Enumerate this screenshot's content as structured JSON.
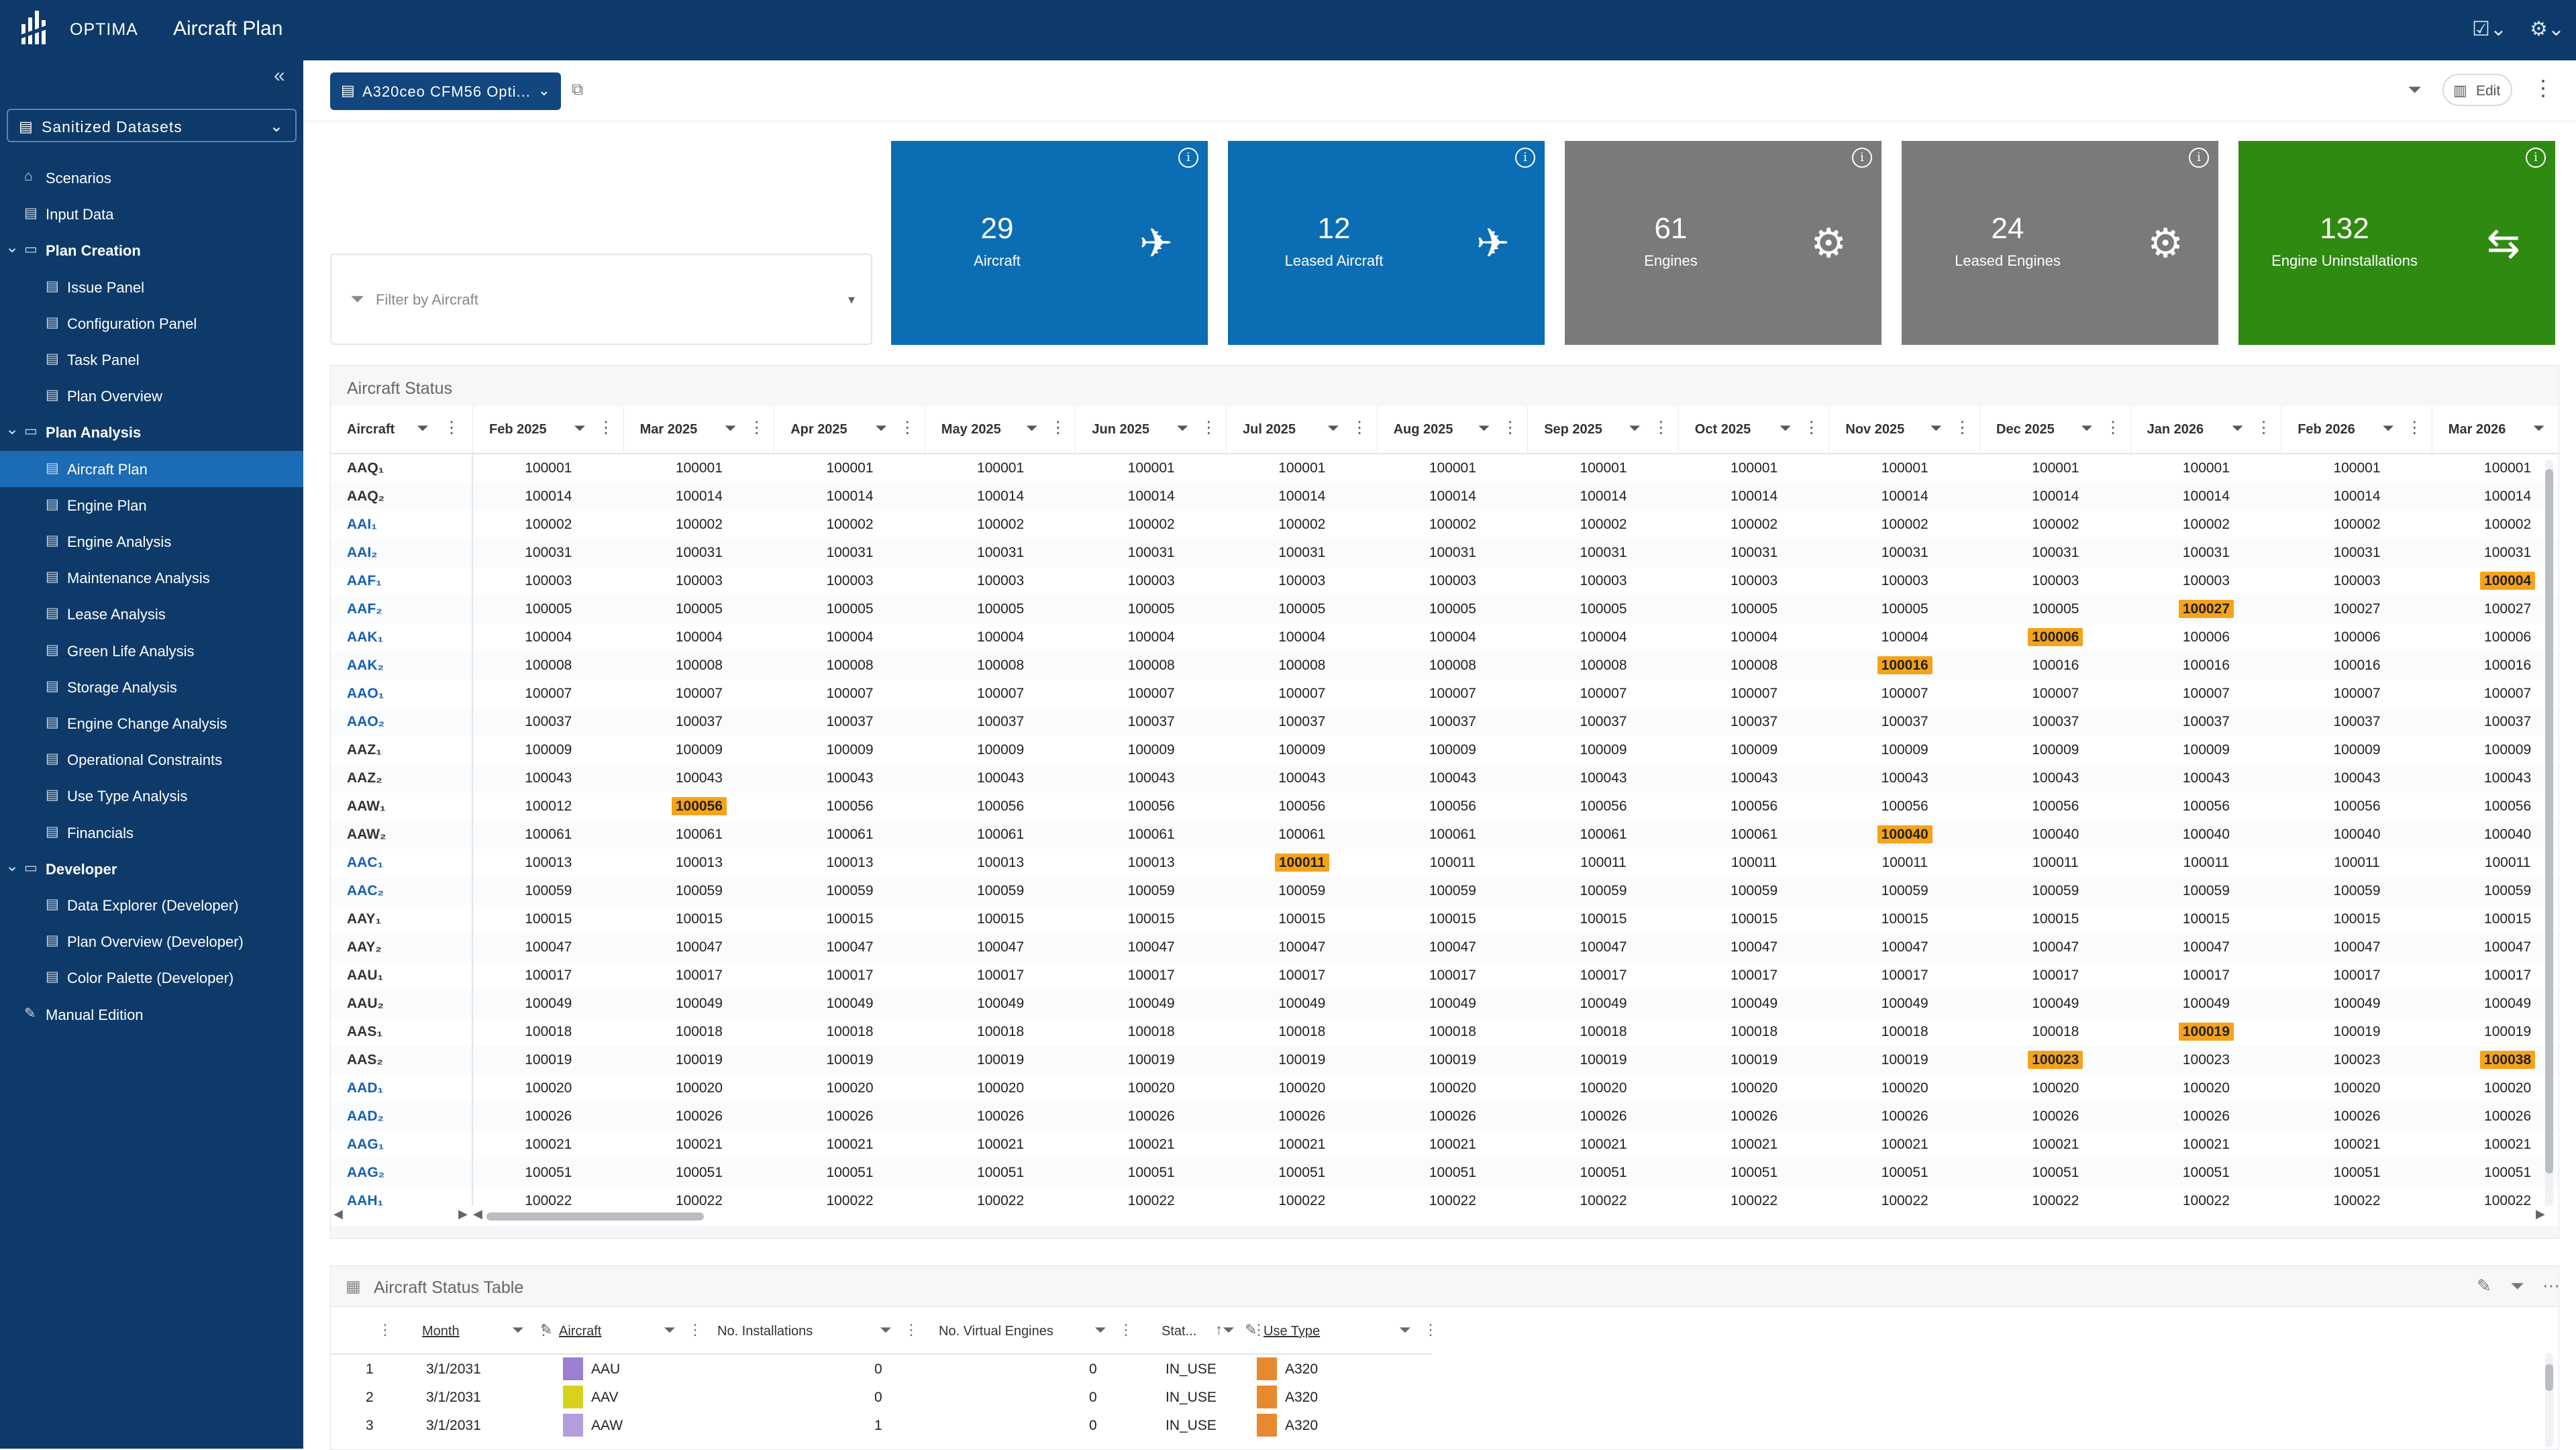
{
  "app": {
    "brand": "OPTIMA",
    "title": "Aircraft Plan"
  },
  "sidebar": {
    "dataset": "Sanitized Datasets",
    "items": [
      {
        "label": "Scenarios",
        "level": 0,
        "group": false,
        "active": false,
        "icon": "home-icon"
      },
      {
        "label": "Input Data",
        "level": 0,
        "group": false,
        "active": false,
        "icon": "page-icon"
      },
      {
        "label": "Plan Creation",
        "level": 0,
        "group": true,
        "active": false,
        "icon": "folder-icon"
      },
      {
        "label": "Issue Panel",
        "level": 1,
        "group": false,
        "active": false,
        "icon": "page-icon"
      },
      {
        "label": "Configuration Panel",
        "level": 1,
        "group": false,
        "active": false,
        "icon": "page-icon"
      },
      {
        "label": "Task Panel",
        "level": 1,
        "group": false,
        "active": false,
        "icon": "page-icon"
      },
      {
        "label": "Plan Overview",
        "level": 1,
        "group": false,
        "active": false,
        "icon": "page-icon"
      },
      {
        "label": "Plan Analysis",
        "level": 0,
        "group": true,
        "active": false,
        "icon": "folder-icon"
      },
      {
        "label": "Aircraft Plan",
        "level": 1,
        "group": false,
        "active": true,
        "icon": "page-icon"
      },
      {
        "label": "Engine Plan",
        "level": 1,
        "group": false,
        "active": false,
        "icon": "page-icon"
      },
      {
        "label": "Engine Analysis",
        "level": 1,
        "group": false,
        "active": false,
        "icon": "page-icon"
      },
      {
        "label": "Maintenance Analysis",
        "level": 1,
        "group": false,
        "active": false,
        "icon": "page-icon"
      },
      {
        "label": "Lease Analysis",
        "level": 1,
        "group": false,
        "active": false,
        "icon": "page-icon"
      },
      {
        "label": "Green Life Analysis",
        "level": 1,
        "group": false,
        "active": false,
        "icon": "page-icon"
      },
      {
        "label": "Storage Analysis",
        "level": 1,
        "group": false,
        "active": false,
        "icon": "page-icon"
      },
      {
        "label": "Engine Change Analysis",
        "level": 1,
        "group": false,
        "active": false,
        "icon": "page-icon"
      },
      {
        "label": "Operational Constraints",
        "level": 1,
        "group": false,
        "active": false,
        "icon": "page-icon"
      },
      {
        "label": "Use Type Analysis",
        "level": 1,
        "group": false,
        "active": false,
        "icon": "page-icon"
      },
      {
        "label": "Financials",
        "level": 1,
        "group": false,
        "active": false,
        "icon": "page-icon"
      },
      {
        "label": "Developer",
        "level": 0,
        "group": true,
        "active": false,
        "icon": "folder-icon"
      },
      {
        "label": "Data Explorer (Developer)",
        "level": 1,
        "group": false,
        "active": false,
        "icon": "page-icon"
      },
      {
        "label": "Plan Overview (Developer)",
        "level": 1,
        "group": false,
        "active": false,
        "icon": "page-icon"
      },
      {
        "label": "Color Palette (Developer)",
        "level": 1,
        "group": false,
        "active": false,
        "icon": "page-icon"
      },
      {
        "label": "Manual Edition",
        "level": 0,
        "group": false,
        "active": false,
        "icon": "pencil-icon"
      }
    ]
  },
  "toolbar": {
    "scenario": "A320ceo CFM56 Opti...",
    "edit_label": "Edit"
  },
  "filter": {
    "placeholder": "Filter by Aircraft"
  },
  "kpis": [
    {
      "value": "29",
      "label": "Aircraft",
      "color": "#0b6db4",
      "icon": "plane-icon"
    },
    {
      "value": "12",
      "label": "Leased Aircraft",
      "color": "#0b6db4",
      "icon": "plane-icon"
    },
    {
      "value": "61",
      "label": "Engines",
      "color": "#7a7a7a",
      "icon": "gear-icon"
    },
    {
      "value": "24",
      "label": "Leased Engines",
      "color": "#7a7a7a",
      "icon": "gear-icon"
    },
    {
      "value": "132",
      "label": "Engine Uninstallations",
      "color": "#2f8a12",
      "icon": "swap-icon"
    }
  ],
  "status_panel": {
    "title": "Aircraft Status",
    "first_col": "Aircraft",
    "months": [
      "Feb 2025",
      "Mar 2025",
      "Apr 2025",
      "May 2025",
      "Jun 2025",
      "Jul 2025",
      "Aug 2025",
      "Sep 2025",
      "Oct 2025",
      "Nov 2025",
      "Dec 2025",
      "Jan 2026",
      "Feb 2026",
      "Mar 2026"
    ],
    "highlight_color": "#f5a31a",
    "rows": [
      {
        "aircraft": "AAQ₁",
        "link": false,
        "values": [
          "100001",
          "100001",
          "100001",
          "100001",
          "100001",
          "100001",
          "100001",
          "100001",
          "100001",
          "100001",
          "100001",
          "100001",
          "100001",
          "100001"
        ],
        "hl": []
      },
      {
        "aircraft": "AAQ₂",
        "link": false,
        "values": [
          "100014",
          "100014",
          "100014",
          "100014",
          "100014",
          "100014",
          "100014",
          "100014",
          "100014",
          "100014",
          "100014",
          "100014",
          "100014",
          "100014"
        ],
        "hl": []
      },
      {
        "aircraft": "AAI₁",
        "link": true,
        "values": [
          "100002",
          "100002",
          "100002",
          "100002",
          "100002",
          "100002",
          "100002",
          "100002",
          "100002",
          "100002",
          "100002",
          "100002",
          "100002",
          "100002"
        ],
        "hl": []
      },
      {
        "aircraft": "AAI₂",
        "link": true,
        "values": [
          "100031",
          "100031",
          "100031",
          "100031",
          "100031",
          "100031",
          "100031",
          "100031",
          "100031",
          "100031",
          "100031",
          "100031",
          "100031",
          "100031"
        ],
        "hl": []
      },
      {
        "aircraft": "AAF₁",
        "link": true,
        "values": [
          "100003",
          "100003",
          "100003",
          "100003",
          "100003",
          "100003",
          "100003",
          "100003",
          "100003",
          "100003",
          "100003",
          "100003",
          "100003",
          "100004"
        ],
        "hl": [
          13
        ]
      },
      {
        "aircraft": "AAF₂",
        "link": true,
        "values": [
          "100005",
          "100005",
          "100005",
          "100005",
          "100005",
          "100005",
          "100005",
          "100005",
          "100005",
          "100005",
          "100005",
          "100027",
          "100027",
          "100027"
        ],
        "hl": [
          11
        ]
      },
      {
        "aircraft": "AAK₁",
        "link": true,
        "values": [
          "100004",
          "100004",
          "100004",
          "100004",
          "100004",
          "100004",
          "100004",
          "100004",
          "100004",
          "100004",
          "100006",
          "100006",
          "100006",
          "100006"
        ],
        "hl": [
          10
        ]
      },
      {
        "aircraft": "AAK₂",
        "link": true,
        "values": [
          "100008",
          "100008",
          "100008",
          "100008",
          "100008",
          "100008",
          "100008",
          "100008",
          "100008",
          "100016",
          "100016",
          "100016",
          "100016",
          "100016"
        ],
        "hl": [
          9
        ]
      },
      {
        "aircraft": "AAO₁",
        "link": true,
        "values": [
          "100007",
          "100007",
          "100007",
          "100007",
          "100007",
          "100007",
          "100007",
          "100007",
          "100007",
          "100007",
          "100007",
          "100007",
          "100007",
          "100007"
        ],
        "hl": []
      },
      {
        "aircraft": "AAO₂",
        "link": true,
        "values": [
          "100037",
          "100037",
          "100037",
          "100037",
          "100037",
          "100037",
          "100037",
          "100037",
          "100037",
          "100037",
          "100037",
          "100037",
          "100037",
          "100037"
        ],
        "hl": []
      },
      {
        "aircraft": "AAZ₁",
        "link": false,
        "values": [
          "100009",
          "100009",
          "100009",
          "100009",
          "100009",
          "100009",
          "100009",
          "100009",
          "100009",
          "100009",
          "100009",
          "100009",
          "100009",
          "100009"
        ],
        "hl": []
      },
      {
        "aircraft": "AAZ₂",
        "link": false,
        "values": [
          "100043",
          "100043",
          "100043",
          "100043",
          "100043",
          "100043",
          "100043",
          "100043",
          "100043",
          "100043",
          "100043",
          "100043",
          "100043",
          "100043"
        ],
        "hl": []
      },
      {
        "aircraft": "AAW₁",
        "link": false,
        "values": [
          "100012",
          "100056",
          "100056",
          "100056",
          "100056",
          "100056",
          "100056",
          "100056",
          "100056",
          "100056",
          "100056",
          "100056",
          "100056",
          "100056"
        ],
        "hl": [
          1
        ]
      },
      {
        "aircraft": "AAW₂",
        "link": false,
        "values": [
          "100061",
          "100061",
          "100061",
          "100061",
          "100061",
          "100061",
          "100061",
          "100061",
          "100061",
          "100040",
          "100040",
          "100040",
          "100040",
          "100040"
        ],
        "hl": [
          9
        ]
      },
      {
        "aircraft": "AAC₁",
        "link": true,
        "values": [
          "100013",
          "100013",
          "100013",
          "100013",
          "100013",
          "100011",
          "100011",
          "100011",
          "100011",
          "100011",
          "100011",
          "100011",
          "100011",
          "100011"
        ],
        "hl": [
          5
        ]
      },
      {
        "aircraft": "AAC₂",
        "link": true,
        "values": [
          "100059",
          "100059",
          "100059",
          "100059",
          "100059",
          "100059",
          "100059",
          "100059",
          "100059",
          "100059",
          "100059",
          "100059",
          "100059",
          "100059"
        ],
        "hl": []
      },
      {
        "aircraft": "AAY₁",
        "link": false,
        "values": [
          "100015",
          "100015",
          "100015",
          "100015",
          "100015",
          "100015",
          "100015",
          "100015",
          "100015",
          "100015",
          "100015",
          "100015",
          "100015",
          "100015"
        ],
        "hl": []
      },
      {
        "aircraft": "AAY₂",
        "link": false,
        "values": [
          "100047",
          "100047",
          "100047",
          "100047",
          "100047",
          "100047",
          "100047",
          "100047",
          "100047",
          "100047",
          "100047",
          "100047",
          "100047",
          "100047"
        ],
        "hl": []
      },
      {
        "aircraft": "AAU₁",
        "link": false,
        "values": [
          "100017",
          "100017",
          "100017",
          "100017",
          "100017",
          "100017",
          "100017",
          "100017",
          "100017",
          "100017",
          "100017",
          "100017",
          "100017",
          "100017"
        ],
        "hl": []
      },
      {
        "aircraft": "AAU₂",
        "link": false,
        "values": [
          "100049",
          "100049",
          "100049",
          "100049",
          "100049",
          "100049",
          "100049",
          "100049",
          "100049",
          "100049",
          "100049",
          "100049",
          "100049",
          "100049"
        ],
        "hl": []
      },
      {
        "aircraft": "AAS₁",
        "link": false,
        "values": [
          "100018",
          "100018",
          "100018",
          "100018",
          "100018",
          "100018",
          "100018",
          "100018",
          "100018",
          "100018",
          "100018",
          "100019",
          "100019",
          "100019"
        ],
        "hl": [
          11
        ]
      },
      {
        "aircraft": "AAS₂",
        "link": false,
        "values": [
          "100019",
          "100019",
          "100019",
          "100019",
          "100019",
          "100019",
          "100019",
          "100019",
          "100019",
          "100019",
          "100023",
          "100023",
          "100023",
          "100038"
        ],
        "hl": [
          10,
          13
        ]
      },
      {
        "aircraft": "AAD₁",
        "link": true,
        "values": [
          "100020",
          "100020",
          "100020",
          "100020",
          "100020",
          "100020",
          "100020",
          "100020",
          "100020",
          "100020",
          "100020",
          "100020",
          "100020",
          "100020"
        ],
        "hl": []
      },
      {
        "aircraft": "AAD₂",
        "link": true,
        "values": [
          "100026",
          "100026",
          "100026",
          "100026",
          "100026",
          "100026",
          "100026",
          "100026",
          "100026",
          "100026",
          "100026",
          "100026",
          "100026",
          "100026"
        ],
        "hl": []
      },
      {
        "aircraft": "AAG₁",
        "link": true,
        "values": [
          "100021",
          "100021",
          "100021",
          "100021",
          "100021",
          "100021",
          "100021",
          "100021",
          "100021",
          "100021",
          "100021",
          "100021",
          "100021",
          "100021"
        ],
        "hl": []
      },
      {
        "aircraft": "AAG₂",
        "link": true,
        "values": [
          "100051",
          "100051",
          "100051",
          "100051",
          "100051",
          "100051",
          "100051",
          "100051",
          "100051",
          "100051",
          "100051",
          "100051",
          "100051",
          "100051"
        ],
        "hl": []
      },
      {
        "aircraft": "AAH₁",
        "link": true,
        "values": [
          "100022",
          "100022",
          "100022",
          "100022",
          "100022",
          "100022",
          "100022",
          "100022",
          "100022",
          "100022",
          "100022",
          "100022",
          "100022",
          "100022"
        ],
        "hl": []
      }
    ]
  },
  "status_table": {
    "title": "Aircraft Status Table",
    "columns": [
      "Month",
      "Aircraft",
      "No. Installations",
      "No. Virtual Engines",
      "Stat...",
      "Use Type"
    ],
    "rows": [
      {
        "n": "1",
        "month": "3/1/2031",
        "aircraft": "AAU",
        "aircraft_color": "#9b7fd1",
        "inst": "0",
        "virt": "0",
        "status": "IN_USE",
        "use_color": "#e8892f",
        "use": "A320"
      },
      {
        "n": "2",
        "month": "3/1/2031",
        "aircraft": "AAV",
        "aircraft_color": "#d8d21e",
        "inst": "0",
        "virt": "0",
        "status": "IN_USE",
        "use_color": "#e8892f",
        "use": "A320"
      },
      {
        "n": "3",
        "month": "3/1/2031",
        "aircraft": "AAW",
        "aircraft_color": "#b39ddb",
        "inst": "1",
        "virt": "0",
        "status": "IN_USE",
        "use_color": "#e8892f",
        "use": "A320"
      }
    ]
  }
}
